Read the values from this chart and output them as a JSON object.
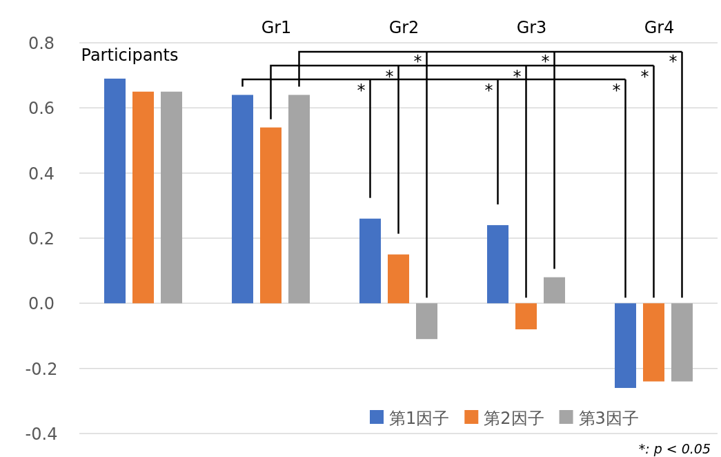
{
  "chart_data": {
    "type": "bar",
    "categories": [
      "Participants",
      "Gr1",
      "Gr2",
      "Gr3",
      "Gr4"
    ],
    "series": [
      {
        "name": "第1因子",
        "color": "#4472c4",
        "values": [
          0.69,
          0.64,
          0.26,
          0.24,
          -0.26
        ]
      },
      {
        "name": "第2因子",
        "color": "#ed7d31",
        "values": [
          0.65,
          0.54,
          0.15,
          -0.08,
          -0.24
        ]
      },
      {
        "name": "第3因子",
        "color": "#a5a5a5",
        "values": [
          0.65,
          0.64,
          -0.11,
          0.08,
          -0.24
        ]
      }
    ],
    "ylim": [
      -0.4,
      0.8
    ],
    "yticks": [
      {
        "value": -0.4,
        "label": "-0.4"
      },
      {
        "value": -0.2,
        "label": "-0.2"
      },
      {
        "value": 0,
        "label": "0.0"
      },
      {
        "value": 0.2,
        "label": "0.2"
      },
      {
        "value": 0.4,
        "label": "0.4"
      },
      {
        "value": 0.6,
        "label": "0.6"
      },
      {
        "value": 0.8,
        "label": "0.8"
      }
    ],
    "grid": "y",
    "legend": "bottom right",
    "annotations": [
      "*",
      "*",
      "*",
      "*",
      "*",
      "*",
      "*",
      "*",
      "*",
      "*: p < 0.05"
    ]
  }
}
